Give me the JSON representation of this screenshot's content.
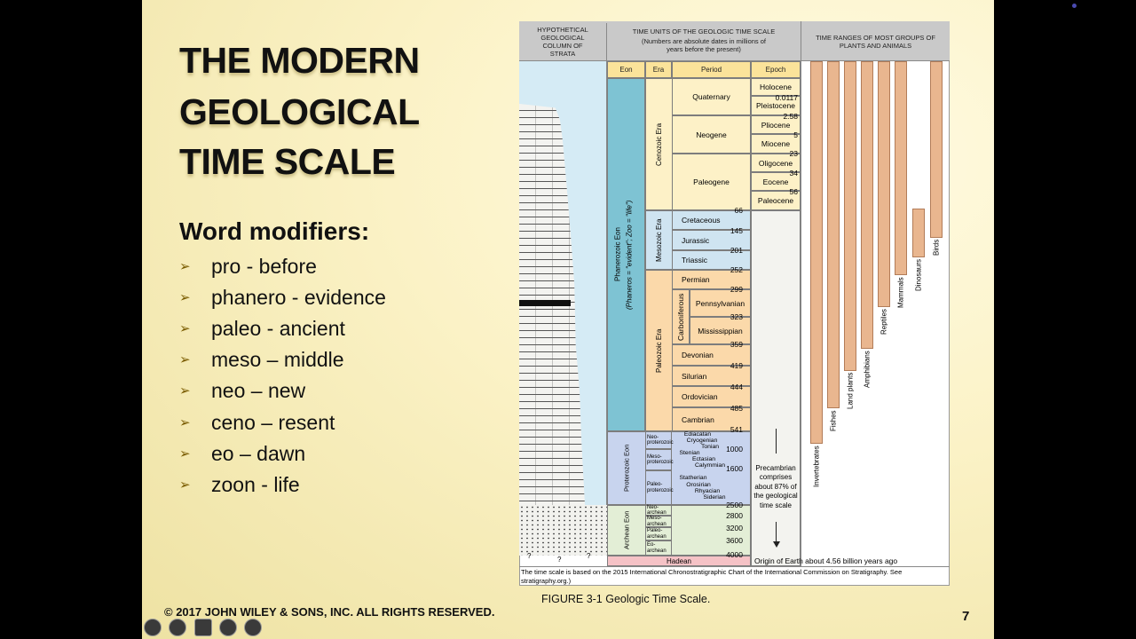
{
  "slide": {
    "title": [
      "THE MODERN",
      "GEOLOGICAL",
      "TIME SCALE"
    ],
    "subtitle": "Word modifiers:",
    "bullets": [
      "pro - before",
      "phanero - evidence",
      "paleo - ancient",
      "meso – middle",
      "neo – new",
      "ceno – resent",
      "eo – dawn",
      "zoon - life"
    ],
    "copyright": "© 2017 JOHN WILEY & SONS, INC. ALL RIGHTS RESERVED.",
    "caption": "FIGURE 3-1 Geologic Time Scale.",
    "page_number": "7"
  },
  "figure": {
    "header": {
      "strata": "HYPOTHETICAL GEOLOGICAL COLUMN OF STRATA",
      "time_units": "TIME UNITS OF THE GEOLOGIC TIME SCALE",
      "time_units_note": "(Numbers are absolute dates in millions of years before the present)",
      "ranges": "TIME RANGES OF MOST GROUPS OF PLANTS AND ANIMALS"
    },
    "columns": [
      "Eon",
      "Era",
      "Period",
      "Epoch"
    ],
    "eons": {
      "phanerozoic": "Phanerozoic Eon",
      "phanerozoic_note": "(Phaneros = \"evident\"; Zoo = \"life\")",
      "proterozoic": "Proterozoic Eon",
      "archean": "Archean Eon",
      "hadean": "Hadean"
    },
    "eras": [
      "Cenozoic Era",
      "Mesozoic Era",
      "Paleozoic Era"
    ],
    "periods": [
      "Quaternary",
      "Neogene",
      "Paleogene",
      "Cretaceous",
      "Jurassic",
      "Triassic",
      "Permian",
      "Carboniferous",
      "Pennsylvanian",
      "Mississippian",
      "Devonian",
      "Silurian",
      "Ordovician",
      "Cambrian"
    ],
    "epochs": [
      "Holocene",
      "Pleistocene",
      "Pliocene",
      "Miocene",
      "Oligocene",
      "Eocene",
      "Paleocene"
    ],
    "ages": [
      "0.0117",
      "2.58",
      "5",
      "23",
      "34",
      "56",
      "66",
      "145",
      "201",
      "252",
      "299",
      "323",
      "359",
      "419",
      "444",
      "485",
      "541",
      "1000",
      "1600",
      "2500",
      "2800",
      "3200",
      "3600",
      "4000"
    ],
    "precambrian_eras": [
      "Neo-proterozoic",
      "Meso-proterozoic",
      "Paleo-proterozoic",
      "Neo-archean",
      "Meso-archean",
      "Paleo-archean",
      "Eo-archean"
    ],
    "precambrian_periods": [
      "Ediacatan",
      "Cryogenian",
      "Tonian",
      "Stenian",
      "Ectasian",
      "Calymmian",
      "Statherian",
      "Orosirian",
      "Rhyacian",
      "Siderian"
    ],
    "precambrian_note": "Precambrian comprises about 87% of the geological time scale",
    "origin_note": "Origin of Earth about 4.56 billion years ago",
    "groups": [
      "Invertebrates",
      "Fishes",
      "Land plants",
      "Amphibians",
      "Reptiles",
      "Mammals",
      "Dinosaurs",
      "Birds"
    ],
    "strata_marks": [
      "?",
      "?",
      "?"
    ],
    "footnote": "The time scale is based on the 2015 International Chronostratigraphic Chart of the International Commission on Stratigraphy. See stratigraphy.org.)"
  }
}
